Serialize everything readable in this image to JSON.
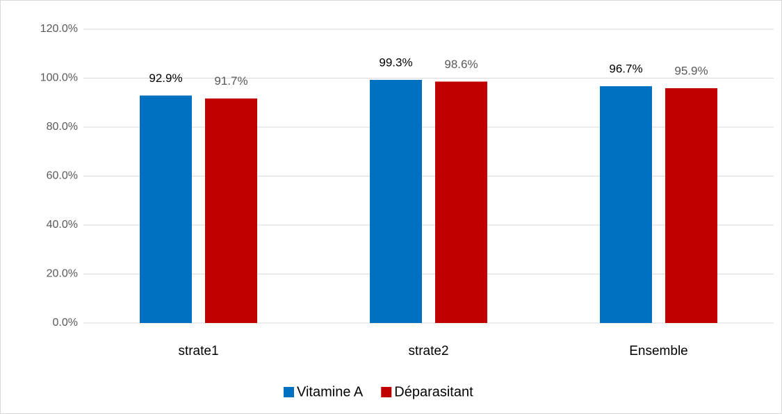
{
  "chart_data": {
    "type": "bar",
    "categories": [
      "strate1",
      "strate2",
      "Ensemble"
    ],
    "series": [
      {
        "name": "Vitamine A",
        "color": "#0070c0",
        "values": [
          92.9,
          99.3,
          96.7
        ],
        "value_labels": [
          "92.9%",
          "99.3%",
          "96.7%"
        ]
      },
      {
        "name": "Déparasitant",
        "color": "#c00000",
        "values": [
          91.7,
          98.6,
          95.9
        ],
        "value_labels": [
          "91.7%",
          "98.6%",
          "95.9%"
        ]
      }
    ],
    "ylim": [
      0,
      120
    ],
    "yticks": [
      {
        "value": 0,
        "label": "0.0%"
      },
      {
        "value": 20,
        "label": "20.0%"
      },
      {
        "value": 40,
        "label": "40.0%"
      },
      {
        "value": 60,
        "label": "60.0%"
      },
      {
        "value": 80,
        "label": "80.0%"
      },
      {
        "value": 100,
        "label": "100.0%"
      },
      {
        "value": 120,
        "label": "120.0%"
      }
    ],
    "grid": true,
    "legend": "bottom"
  }
}
